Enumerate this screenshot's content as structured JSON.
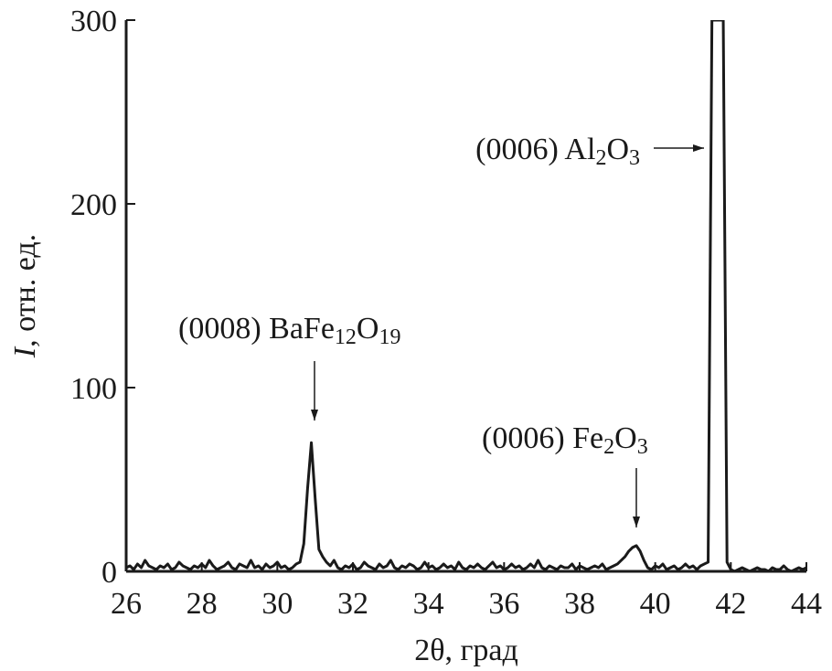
{
  "chart_data": {
    "type": "line",
    "x_label": [
      {
        "text": "2θ, град"
      }
    ],
    "y_label": [
      {
        "text": "I",
        "italic": true
      },
      {
        "text": ", отн. ед."
      }
    ],
    "xlim": [
      26,
      44
    ],
    "xticks": [
      26,
      28,
      30,
      32,
      34,
      36,
      38,
      40,
      42,
      44
    ],
    "ylim": [
      0,
      300
    ],
    "yticks": [
      0,
      100,
      200,
      300
    ],
    "grid": false,
    "annotations": [
      [
        {
          "text": "(0006) Al"
        },
        {
          "text": "2",
          "sub": true
        },
        {
          "text": "O"
        },
        {
          "text": "3",
          "sub": true
        }
      ],
      [
        {
          "text": "(0008) BaFe"
        },
        {
          "text": "12",
          "sub": true
        },
        {
          "text": "O"
        },
        {
          "text": "19",
          "sub": true
        }
      ],
      [
        {
          "text": "(0006) Fe"
        },
        {
          "text": "2",
          "sub": true
        },
        {
          "text": "O"
        },
        {
          "text": "3",
          "sub": true
        }
      ]
    ],
    "x": [
      26,
      26.1,
      26.2,
      26.3,
      26.4,
      26.5,
      26.6,
      26.7,
      26.8,
      26.9,
      27,
      27.1,
      27.2,
      27.3,
      27.4,
      27.5,
      27.6,
      27.7,
      27.8,
      27.9,
      28,
      28.1,
      28.2,
      28.3,
      28.4,
      28.5,
      28.6,
      28.7,
      28.8,
      28.9,
      29,
      29.1,
      29.2,
      29.3,
      29.4,
      29.5,
      29.6,
      29.7,
      29.8,
      29.9,
      30,
      30.1,
      30.2,
      30.3,
      30.4,
      30.5,
      30.6,
      30.7,
      30.8,
      30.9,
      31,
      31.1,
      31.2,
      31.3,
      31.4,
      31.5,
      31.6,
      31.7,
      31.8,
      31.9,
      32,
      32.1,
      32.2,
      32.3,
      32.4,
      32.5,
      32.6,
      32.7,
      32.8,
      32.9,
      33,
      33.1,
      33.2,
      33.3,
      33.4,
      33.5,
      33.6,
      33.7,
      33.8,
      33.9,
      34,
      34.1,
      34.2,
      34.3,
      34.4,
      34.5,
      34.6,
      34.7,
      34.8,
      34.9,
      35,
      35.1,
      35.2,
      35.3,
      35.4,
      35.5,
      35.6,
      35.7,
      35.8,
      35.9,
      36,
      36.1,
      36.2,
      36.3,
      36.4,
      36.5,
      36.6,
      36.7,
      36.8,
      36.9,
      37,
      37.1,
      37.2,
      37.3,
      37.4,
      37.5,
      37.6,
      37.7,
      37.8,
      37.9,
      38,
      38.1,
      38.2,
      38.3,
      38.4,
      38.5,
      38.6,
      38.7,
      38.8,
      38.9,
      39,
      39.1,
      39.2,
      39.3,
      39.4,
      39.5,
      39.6,
      39.7,
      39.8,
      39.9,
      40,
      40.1,
      40.2,
      40.3,
      40.4,
      40.5,
      40.6,
      40.7,
      40.8,
      40.9,
      41,
      41.1,
      41.2,
      41.3,
      41.4,
      41.5,
      41.8,
      41.9,
      42,
      42.1,
      42.2,
      42.3,
      42.4,
      42.5,
      42.6,
      42.7,
      42.8,
      42.9,
      43,
      43.1,
      43.2,
      43.3,
      43.4,
      43.5,
      43.6,
      43.7,
      43.8,
      43.9,
      44
    ],
    "series": [
      {
        "color": "#1a1a1a",
        "values": [
          2,
          3,
          1,
          4,
          2,
          6,
          3,
          2,
          1,
          3,
          2,
          4,
          1,
          2,
          5,
          3,
          2,
          1,
          3,
          2,
          4,
          2,
          6,
          3,
          1,
          2,
          3,
          5,
          2,
          1,
          4,
          3,
          2,
          6,
          2,
          3,
          1,
          4,
          2,
          3,
          5,
          2,
          3,
          1,
          2,
          4,
          5,
          15,
          45,
          70,
          40,
          12,
          8,
          5,
          3,
          6,
          2,
          1,
          3,
          2,
          4,
          1,
          2,
          5,
          3,
          2,
          1,
          4,
          2,
          3,
          6,
          2,
          1,
          3,
          2,
          4,
          3,
          1,
          2,
          5,
          2,
          3,
          1,
          2,
          4,
          2,
          3,
          1,
          5,
          2,
          1,
          3,
          2,
          4,
          2,
          1,
          3,
          5,
          2,
          3,
          1,
          2,
          4,
          2,
          3,
          1,
          2,
          4,
          2,
          6,
          2,
          1,
          3,
          2,
          1,
          3,
          2,
          2,
          4,
          1,
          3,
          2,
          1,
          2,
          3,
          2,
          4,
          1,
          2,
          3,
          4,
          6,
          8,
          11,
          13,
          14,
          11,
          6,
          2,
          1,
          3,
          2,
          4,
          1,
          2,
          3,
          1,
          2,
          4,
          2,
          3,
          1,
          3,
          4,
          5,
          300,
          300,
          5,
          1,
          0,
          1,
          2,
          1,
          0,
          1,
          2,
          1,
          1,
          0,
          2,
          1,
          1,
          3,
          1,
          0,
          1,
          2,
          1,
          2
        ]
      }
    ]
  }
}
